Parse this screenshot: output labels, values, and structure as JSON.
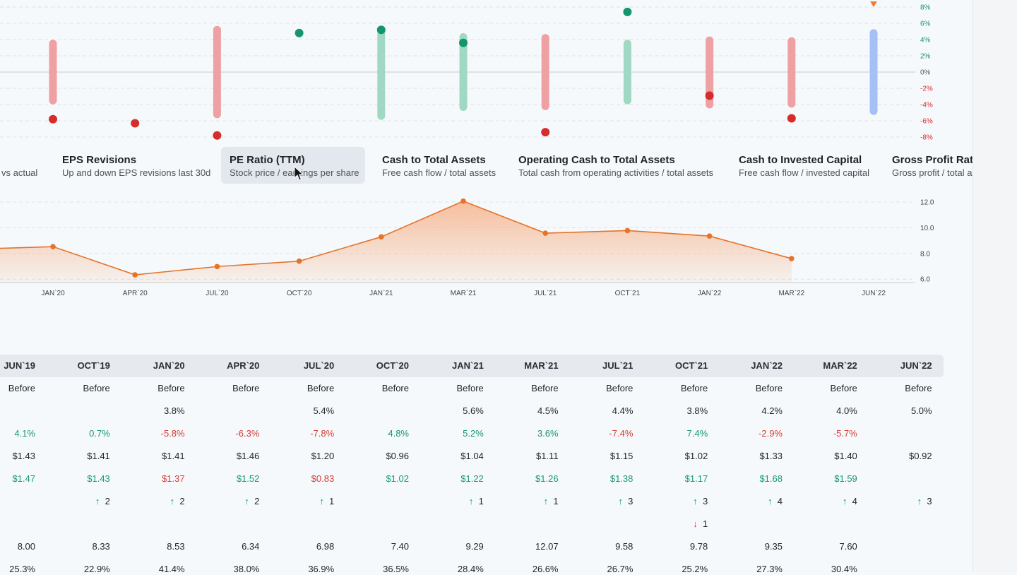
{
  "dot_chart": {
    "y_ticks": [
      "8%",
      "6%",
      "4%",
      "2%",
      "0%",
      "-2%",
      "-4%",
      "-6%",
      "-8%"
    ],
    "periods": [
      {
        "label": "JAN`20",
        "range": [
          -3.5,
          3.5
        ],
        "range_color": "#eea0a2",
        "dot": -5.8,
        "dot_color": "#d62c2c"
      },
      {
        "label": "APR`20",
        "range": null,
        "range_color": null,
        "dot": -6.3,
        "dot_color": "#d62c2c"
      },
      {
        "label": "JUL`20",
        "range": [
          -5.2,
          5.2
        ],
        "range_color": "#eea0a2",
        "dot": -7.8,
        "dot_color": "#d62c2c"
      },
      {
        "label": "OCT`20",
        "range": null,
        "range_color": null,
        "dot": 4.8,
        "dot_color": "#13966a"
      },
      {
        "label": "JAN`21",
        "range": [
          -5.4,
          5.1
        ],
        "range_color": "#9fd9c4",
        "dot": 5.2,
        "dot_color": "#13966a"
      },
      {
        "label": "MAR`21",
        "range": [
          -4.3,
          4.3
        ],
        "range_color": "#9fd9c4",
        "dot": 3.6,
        "dot_color": "#13966a"
      },
      {
        "label": "JUL`21",
        "range": [
          -4.2,
          4.2
        ],
        "range_color": "#eea0a2",
        "dot": -7.4,
        "dot_color": "#d62c2c"
      },
      {
        "label": "OCT`21",
        "range": [
          -3.5,
          3.5
        ],
        "range_color": "#9fd9c4",
        "dot": 7.4,
        "dot_color": "#13966a"
      },
      {
        "label": "JAN`22",
        "range": [
          -4.0,
          3.9
        ],
        "range_color": "#eea0a2",
        "dot": -2.9,
        "dot_color": "#d62c2c"
      },
      {
        "label": "MAR`22",
        "range": [
          -3.9,
          3.8
        ],
        "range_color": "#eea0a2",
        "dot": -5.7,
        "dot_color": "#d62c2c"
      },
      {
        "label": "JUN`22",
        "range": [
          -4.8,
          4.8
        ],
        "range_color": "#a6bff5",
        "dot": null,
        "dot_color": null
      }
    ],
    "marker_color": "#f07c2e"
  },
  "metrics": [
    {
      "title": "",
      "subtitle": "vs actual",
      "active": false
    },
    {
      "title": "EPS Revisions",
      "subtitle": "Up and down EPS revisions last 30d",
      "active": false
    },
    {
      "title": "PE Ratio (TTM)",
      "subtitle": "Stock price / earnings per share",
      "active": true
    },
    {
      "title": "Cash to Total Assets",
      "subtitle": "Free cash flow / total assets",
      "active": false
    },
    {
      "title": "Operating Cash to Total Assets",
      "subtitle": "Total cash from operating activities / total assets",
      "active": false
    },
    {
      "title": "Cash to Invested Capital",
      "subtitle": "Free cash flow / invested capital",
      "active": false
    },
    {
      "title": "Gross Profit Ratio",
      "subtitle": "Gross profit / total assets",
      "active": false
    }
  ],
  "chart_data": {
    "type": "area",
    "title": "PE Ratio (TTM)",
    "x": [
      "JAN`20",
      "APR`20",
      "JUL`20",
      "OCT`20",
      "JAN`21",
      "MAR`21",
      "JUL`21",
      "OCT`21",
      "JAN`22",
      "MAR`22",
      "JUN`22"
    ],
    "y": [
      8.53,
      6.34,
      6.98,
      7.4,
      9.29,
      12.07,
      9.58,
      9.78,
      9.35,
      7.6,
      null
    ],
    "y_left_edge": 8.4,
    "ylim": [
      5.9,
      12.4
    ],
    "y_ticks": [
      "12.0",
      "10.0",
      "8.0",
      "6.0"
    ],
    "line_color": "#e5732a",
    "fill_color": "#f6b48c"
  },
  "table": {
    "columns": [
      "JUN`19",
      "OCT`19",
      "JAN`20",
      "APR`20",
      "JUL`20",
      "OCT`20",
      "JAN`21",
      "MAR`21",
      "JUL`21",
      "OCT`21",
      "JAN`22",
      "MAR`22",
      "JUN`22"
    ],
    "rows": [
      {
        "type": "text",
        "cells": [
          "Before",
          "Before",
          "Before",
          "Before",
          "Before",
          "Before",
          "Before",
          "Before",
          "Before",
          "Before",
          "Before",
          "Before",
          "Before"
        ]
      },
      {
        "type": "text",
        "cells": [
          "",
          "",
          "3.8%",
          "",
          "5.4%",
          "",
          "5.6%",
          "4.5%",
          "4.4%",
          "3.8%",
          "4.2%",
          "4.0%",
          "5.0%"
        ]
      },
      {
        "type": "signed",
        "cells": [
          "4.1%",
          "0.7%",
          "-5.8%",
          "-6.3%",
          "-7.8%",
          "4.8%",
          "5.2%",
          "3.6%",
          "-7.4%",
          "7.4%",
          "-2.9%",
          "-5.7%",
          ""
        ],
        "signs": [
          "pos",
          "pos",
          "neg",
          "neg",
          "neg",
          "pos",
          "pos",
          "pos",
          "neg",
          "pos",
          "neg",
          "neg",
          ""
        ]
      },
      {
        "type": "text",
        "cells": [
          "$1.43",
          "$1.41",
          "$1.41",
          "$1.46",
          "$1.20",
          "$0.96",
          "$1.04",
          "$1.11",
          "$1.15",
          "$1.02",
          "$1.33",
          "$1.40",
          "$0.92"
        ]
      },
      {
        "type": "signed",
        "cells": [
          "$1.47",
          "$1.43",
          "$1.37",
          "$1.52",
          "$0.83",
          "$1.02",
          "$1.22",
          "$1.26",
          "$1.38",
          "$1.17",
          "$1.68",
          "$1.59",
          ""
        ],
        "signs": [
          "pos",
          "pos",
          "neg",
          "pos",
          "neg",
          "pos",
          "pos",
          "pos",
          "pos",
          "pos",
          "pos",
          "pos",
          ""
        ]
      },
      {
        "type": "up",
        "cells": [
          "",
          "2",
          "2",
          "2",
          "1",
          "",
          "1",
          "1",
          "3",
          "3",
          "4",
          "4",
          "3"
        ]
      },
      {
        "type": "down",
        "cells": [
          "",
          "",
          "",
          "",
          "",
          "",
          "",
          "",
          "",
          "1",
          "",
          "",
          ""
        ]
      },
      {
        "type": "text",
        "cells": [
          "8.00",
          "8.33",
          "8.53",
          "6.34",
          "6.98",
          "7.40",
          "9.29",
          "12.07",
          "9.58",
          "9.78",
          "9.35",
          "7.60",
          ""
        ]
      },
      {
        "type": "text",
        "cells": [
          "25.3%",
          "22.9%",
          "41.4%",
          "38.0%",
          "36.9%",
          "36.5%",
          "28.4%",
          "26.6%",
          "26.7%",
          "25.2%",
          "27.3%",
          "30.4%",
          ""
        ]
      }
    ],
    "up_arrow": "↑",
    "down_arrow": "↓"
  },
  "colors": {
    "positive": "#149970",
    "negative": "#d63b33",
    "axis_positive": "#13966a",
    "axis_negative": "#d62c2c"
  }
}
